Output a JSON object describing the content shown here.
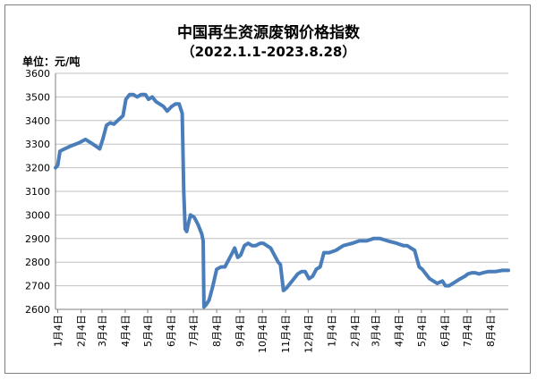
{
  "chart_data": {
    "type": "line",
    "title": "中国再生资源废钢价格指数",
    "subtitle": "（2022.1.1-2023.8.28）",
    "ylabel": "单位：元/吨",
    "xlabel": "",
    "ylim": [
      2600,
      3600
    ],
    "yticks": [
      2600,
      2700,
      2800,
      2900,
      3000,
      3100,
      3200,
      3300,
      3400,
      3500,
      3600
    ],
    "grid": true,
    "legend": "none",
    "line_color": "#4a7ebb",
    "xtick_labels": [
      "1月4日",
      "2月4日",
      "3月4日",
      "4月4日",
      "5月4日",
      "6月4日",
      "7月4日",
      "8月4日",
      "9月4日",
      "10月4日",
      "11月4日",
      "12月4日",
      "1月4日",
      "2月4日",
      "3月4日",
      "4月4日",
      "5月4日",
      "6月4日",
      "7月4日",
      "8月4日"
    ],
    "xtick_dates": [
      "2022-01-04",
      "2022-02-04",
      "2022-03-04",
      "2022-04-04",
      "2022-05-04",
      "2022-06-04",
      "2022-07-04",
      "2022-08-04",
      "2022-09-04",
      "2022-10-04",
      "2022-11-04",
      "2022-12-04",
      "2023-01-04",
      "2023-02-04",
      "2023-03-04",
      "2023-04-04",
      "2023-05-04",
      "2023-06-04",
      "2023-07-04",
      "2023-08-04"
    ],
    "series": [
      {
        "x": [
          "2022-01-01",
          "2022-01-04",
          "2022-01-07",
          "2022-01-10",
          "2022-01-20",
          "2022-02-01",
          "2022-02-10",
          "2022-02-20",
          "2022-03-01",
          "2022-03-05",
          "2022-03-10",
          "2022-03-15",
          "2022-03-20",
          "2022-03-25",
          "2022-04-01",
          "2022-04-05",
          "2022-04-10",
          "2022-04-15",
          "2022-04-20",
          "2022-04-25",
          "2022-05-01",
          "2022-05-05",
          "2022-05-10",
          "2022-05-15",
          "2022-05-20",
          "2022-05-25",
          "2022-05-30",
          "2022-06-05",
          "2022-06-10",
          "2022-06-15",
          "2022-06-19",
          "2022-06-21",
          "2022-06-23",
          "2022-06-25",
          "2022-06-27",
          "2022-06-30",
          "2022-07-05",
          "2022-07-10",
          "2022-07-15",
          "2022-07-17",
          "2022-07-18",
          "2022-07-21",
          "2022-07-25",
          "2022-07-30",
          "2022-08-04",
          "2022-08-10",
          "2022-08-15",
          "2022-08-20",
          "2022-08-25",
          "2022-08-28",
          "2022-09-01",
          "2022-09-05",
          "2022-09-10",
          "2022-09-15",
          "2022-09-20",
          "2022-09-25",
          "2022-10-01",
          "2022-10-05",
          "2022-10-10",
          "2022-10-15",
          "2022-10-20",
          "2022-10-25",
          "2022-10-28",
          "2022-11-01",
          "2022-11-05",
          "2022-11-10",
          "2022-11-15",
          "2022-11-20",
          "2022-11-25",
          "2022-11-30",
          "2022-12-05",
          "2022-12-10",
          "2022-12-15",
          "2022-12-20",
          "2022-12-25",
          "2023-01-01",
          "2023-01-10",
          "2023-01-20",
          "2023-02-01",
          "2023-02-10",
          "2023-02-20",
          "2023-03-01",
          "2023-03-10",
          "2023-03-20",
          "2023-04-01",
          "2023-04-10",
          "2023-04-15",
          "2023-04-20",
          "2023-04-25",
          "2023-05-01",
          "2023-05-05",
          "2023-05-10",
          "2023-05-15",
          "2023-05-20",
          "2023-05-25",
          "2023-06-01",
          "2023-06-05",
          "2023-06-10",
          "2023-06-15",
          "2023-06-20",
          "2023-06-25",
          "2023-07-01",
          "2023-07-05",
          "2023-07-10",
          "2023-07-15",
          "2023-07-20",
          "2023-07-25",
          "2023-08-01",
          "2023-08-10",
          "2023-08-20",
          "2023-08-28"
        ],
        "y": [
          3200,
          3210,
          3270,
          3275,
          3290,
          3305,
          3320,
          3300,
          3280,
          3320,
          3380,
          3390,
          3385,
          3400,
          3420,
          3490,
          3510,
          3510,
          3500,
          3510,
          3510,
          3490,
          3500,
          3480,
          3470,
          3460,
          3440,
          3460,
          3470,
          3470,
          3430,
          3100,
          2940,
          2930,
          2960,
          3000,
          2990,
          2960,
          2920,
          2890,
          2610,
          2620,
          2640,
          2700,
          2770,
          2780,
          2780,
          2810,
          2840,
          2860,
          2820,
          2830,
          2870,
          2880,
          2870,
          2870,
          2880,
          2880,
          2870,
          2860,
          2830,
          2800,
          2790,
          2680,
          2690,
          2710,
          2730,
          2750,
          2760,
          2760,
          2730,
          2740,
          2770,
          2780,
          2840,
          2840,
          2850,
          2870,
          2880,
          2890,
          2890,
          2900,
          2900,
          2890,
          2880,
          2870,
          2870,
          2860,
          2850,
          2780,
          2770,
          2750,
          2730,
          2720,
          2710,
          2720,
          2700,
          2700,
          2710,
          2720,
          2730,
          2740,
          2750,
          2755,
          2755,
          2750,
          2755,
          2760,
          2760,
          2765,
          2765
        ]
      }
    ]
  }
}
